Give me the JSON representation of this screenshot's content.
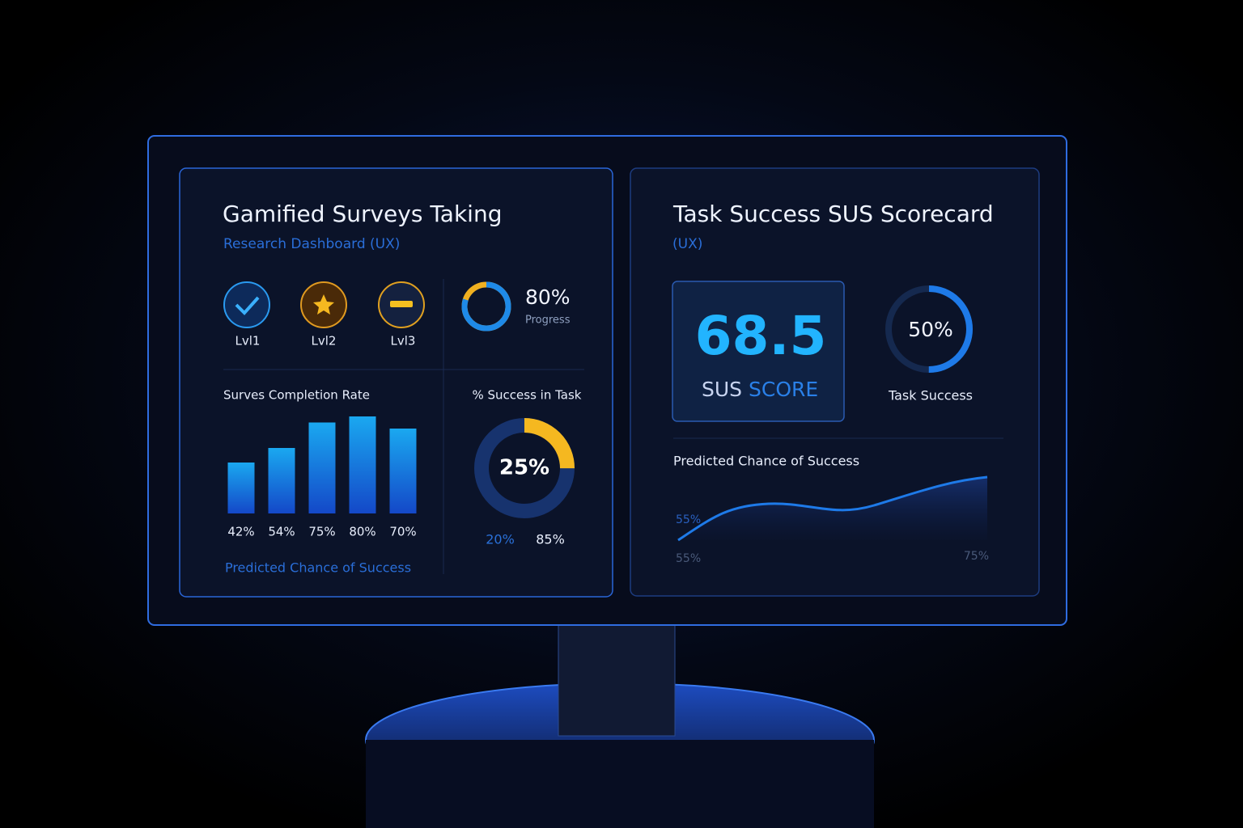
{
  "left_panel": {
    "title": "Gamified Surveys Taking",
    "subtitle": "Research Dashboard (UX)",
    "levels": [
      "Lvl1",
      "Lvl2",
      "Lvl3"
    ],
    "progress": {
      "value": 80,
      "value_label": "80%",
      "label": "Progress"
    },
    "completion_chart": {
      "title": "Surves Completion Rate",
      "values": [
        42,
        54,
        75,
        80,
        70
      ],
      "value_labels": [
        "42%",
        "54%",
        "75%",
        "80%",
        "70%"
      ]
    },
    "success_donut": {
      "title": "% Success in Task",
      "value": 25,
      "value_label": "25%",
      "legend": [
        "20%",
        "85%"
      ]
    },
    "footer": "Predicted Chance of Success"
  },
  "right_panel": {
    "title": "Task Success SUS Scorecard",
    "subtitle": "(UX)",
    "sus_score": {
      "value": 68.5,
      "label_1": "SUS",
      "label_2": "SCORE"
    },
    "task_success": {
      "value": 50,
      "value_label": "50%",
      "label": "Task Success"
    },
    "trend": {
      "title": "Predicted Chance of Success",
      "y_label": "55%",
      "x_labels": [
        "55%",
        "75%"
      ]
    }
  }
}
